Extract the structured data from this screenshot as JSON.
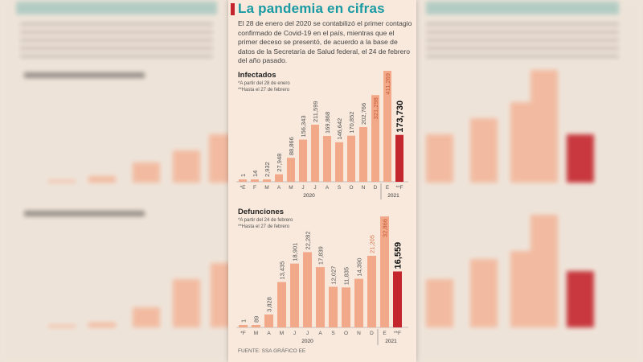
{
  "title": "La pandemia en cifras",
  "intro": "El 28 de enero del 2020 se contabilizó el primer contagio confirmado de Covid-19 en el país, mientras que el primer deceso se presentó, de acuerdo a la base de datos de la Secretaría de Salud federal, el 24 de febrero del año pasado.",
  "source": "FUENTE: SSA GRÁFICO EE",
  "colors": {
    "bar": "#f2a98a",
    "highlight": "#c4262e",
    "title": "#1a9aa3"
  },
  "chart_data": [
    {
      "type": "bar",
      "title": "Infectados",
      "notes": [
        "*A partir del 28 de enero",
        "**Hasta el 27 de febrero"
      ],
      "categories": [
        "*E",
        "F",
        "M",
        "A",
        "M",
        "J",
        "J",
        "A",
        "S",
        "O",
        "N",
        "D",
        "E",
        "**F"
      ],
      "values": [
        1,
        14,
        2932,
        27948,
        88866,
        156343,
        211599,
        169868,
        146642,
        170852,
        202766,
        321298,
        411269,
        173730
      ],
      "labels": [
        "1",
        "14",
        "2,932",
        "27,948",
        "88,866",
        "156,343",
        "211,599",
        "169,868",
        "146,642",
        "170,852",
        "202,766",
        "321,298",
        "411,269",
        "173,730"
      ],
      "years": [
        {
          "label": "2020",
          "from": 0,
          "to": 11
        },
        {
          "label": "2021",
          "from": 12,
          "to": 13
        }
      ],
      "highlight_last": true
    },
    {
      "type": "bar",
      "title": "Defunciones",
      "notes": [
        "*A partir del 24 de febrero",
        "**Hasta el 27 de febrero"
      ],
      "categories": [
        "*F",
        "M",
        "A",
        "M",
        "J",
        "J",
        "A",
        "S",
        "O",
        "N",
        "D",
        "E",
        "**F"
      ],
      "values": [
        1,
        89,
        3828,
        13435,
        18901,
        22282,
        17839,
        12027,
        11835,
        14390,
        21205,
        32866,
        16559
      ],
      "labels": [
        "1",
        "89",
        "3,828",
        "13,435",
        "18,901",
        "22,282",
        "17,839",
        "12,027",
        "11,835",
        "14,390",
        "21,205",
        "32,866",
        "16,559"
      ],
      "years": [
        {
          "label": "2020",
          "from": 0,
          "to": 10
        },
        {
          "label": "2021",
          "from": 11,
          "to": 12
        }
      ],
      "highlight_last": true
    }
  ]
}
